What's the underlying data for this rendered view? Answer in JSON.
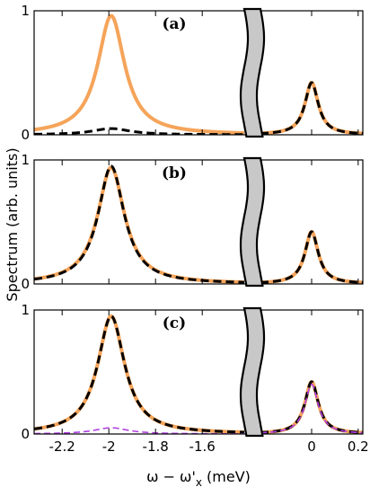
{
  "chart_data": {
    "type": "line",
    "ylabel": "Spectrum (arb. units)",
    "xlabel": {
      "main": "ω − ω'",
      "sub": "x",
      "unit": " (meV)"
    },
    "x_segments": [
      {
        "xlim": [
          -2.32,
          -1.42
        ],
        "ticks": [
          -2.2,
          -2.0,
          -1.8,
          -1.6
        ]
      },
      {
        "xlim": [
          -0.22,
          0.22
        ],
        "ticks": [
          0.0,
          0.2
        ]
      }
    ],
    "x_tick_labels": [
      "-2.2",
      "-2",
      "-1.8",
      "-1.6",
      "0",
      "0.2"
    ],
    "ylim": [
      0,
      1
    ],
    "y_tick_labels": [
      "0",
      "1"
    ],
    "axis_break": true,
    "colors": {
      "orange": "#f5a45a",
      "black": "#000000",
      "purple": "#b040e0",
      "break_fill": "#c8c8c8"
    },
    "panels": [
      {
        "label": "(a)",
        "series": [
          {
            "style": "solid",
            "color": "orange",
            "peaks": [
              {
                "center": -1.99,
                "width": 0.07,
                "height": 0.96
              },
              {
                "center": 0.0,
                "width": 0.035,
                "height": 0.42
              }
            ]
          },
          {
            "style": "dashed",
            "color": "black",
            "peaks": [
              {
                "center": -1.99,
                "width": 0.1,
                "height": 0.05
              },
              {
                "center": 0.0,
                "width": 0.035,
                "height": 0.42
              }
            ]
          }
        ]
      },
      {
        "label": "(b)",
        "series": [
          {
            "style": "solid",
            "color": "orange",
            "peaks": [
              {
                "center": -1.99,
                "width": 0.07,
                "height": 0.94
              },
              {
                "center": 0.0,
                "width": 0.035,
                "height": 0.42
              }
            ]
          },
          {
            "style": "dashed",
            "color": "black",
            "peaks": [
              {
                "center": -1.99,
                "width": 0.068,
                "height": 0.95
              },
              {
                "center": 0.0,
                "width": 0.035,
                "height": 0.42
              }
            ]
          }
        ]
      },
      {
        "label": "(c)",
        "series": [
          {
            "style": "solid",
            "color": "orange",
            "peaks": [
              {
                "center": -1.99,
                "width": 0.07,
                "height": 0.95
              },
              {
                "center": 0.0,
                "width": 0.035,
                "height": 0.42
              }
            ]
          },
          {
            "style": "dashed",
            "color": "black",
            "peaks": [
              {
                "center": -1.99,
                "width": 0.07,
                "height": 0.95
              },
              {
                "center": 0.0,
                "width": 0.035,
                "height": 0.42
              }
            ]
          },
          {
            "style": "dashed",
            "color": "purple",
            "thin": true,
            "peaks": [
              {
                "center": -1.99,
                "width": 0.09,
                "height": 0.05
              },
              {
                "center": 0.0,
                "width": 0.035,
                "height": 0.4
              }
            ]
          }
        ]
      }
    ]
  }
}
